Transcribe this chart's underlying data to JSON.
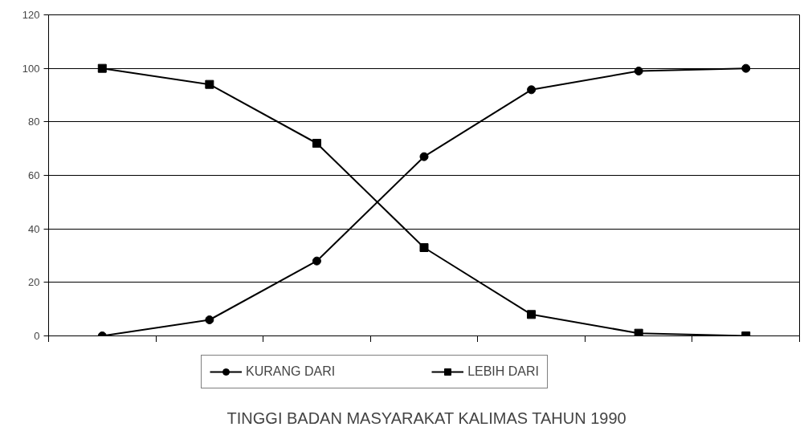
{
  "chart_data": {
    "type": "line",
    "title": "TINGGI BADAN MASYARAKAT KALIMAS TAHUN 1990",
    "categories": [
      null,
      null,
      null,
      null,
      null,
      null,
      null
    ],
    "series": [
      {
        "name": "KURANG DARI",
        "color": "#000000",
        "marker": "circle",
        "values": [
          0,
          6,
          28,
          67,
          92,
          99,
          100
        ]
      },
      {
        "name": "LEBIH DARI",
        "color": "#000000",
        "marker": "square",
        "values": [
          100,
          94,
          72,
          33,
          8,
          1,
          0
        ]
      }
    ],
    "ylim": [
      0,
      120
    ],
    "yticks": [
      0,
      20,
      40,
      60,
      80,
      100,
      120
    ],
    "grid": "y",
    "legend": "bottom",
    "line_style": "solid"
  }
}
